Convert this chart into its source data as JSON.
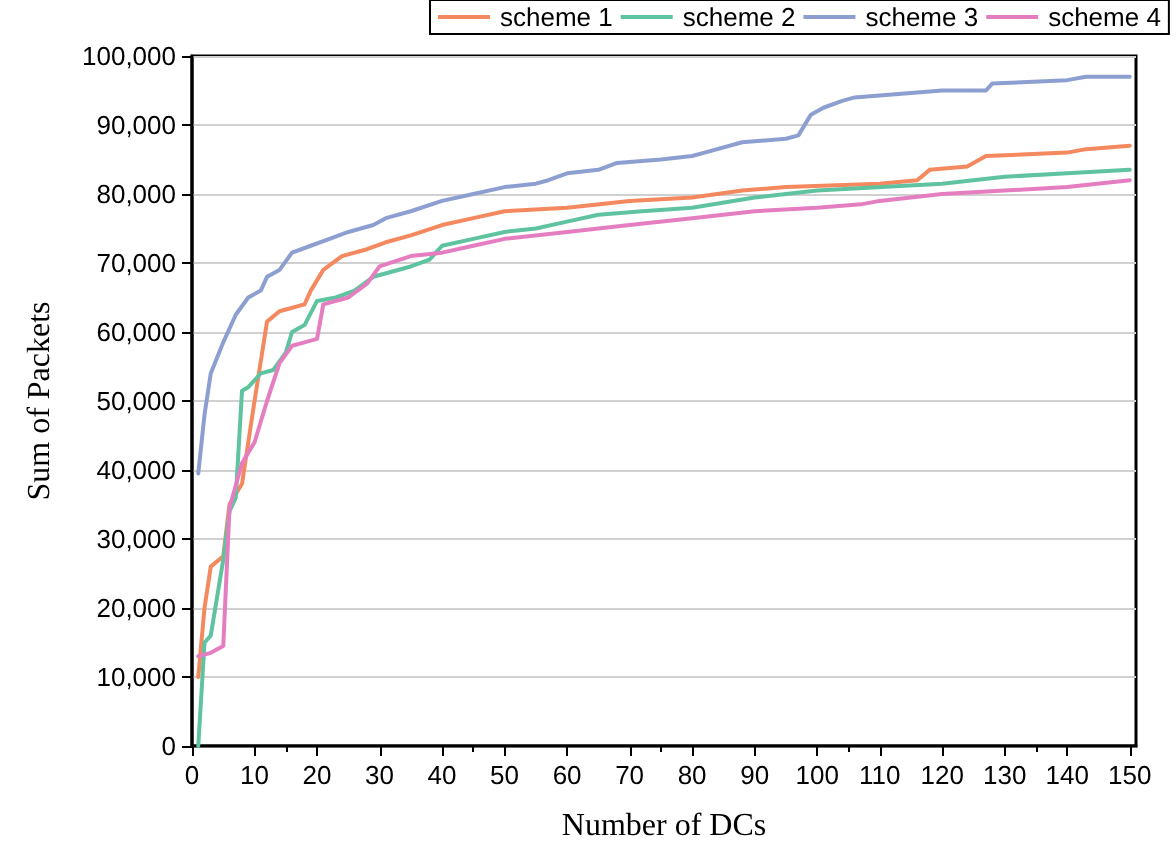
{
  "chart_data": {
    "type": "line",
    "xlabel": "Number of DCs",
    "ylabel": "Sum of Packets",
    "xlim": [
      0,
      151
    ],
    "xticks": [
      0,
      10,
      20,
      30,
      40,
      50,
      60,
      70,
      80,
      90,
      100,
      110,
      120,
      130,
      140,
      150
    ],
    "ylim": [
      0,
      100000
    ],
    "yticks": [
      0,
      {
        "value": 10000,
        "label": "10,000"
      },
      {
        "value": 20000,
        "label": "20,000"
      },
      {
        "value": 30000,
        "label": "30,000"
      },
      {
        "value": 40000,
        "label": "40,000"
      },
      {
        "value": 50000,
        "label": "50,000"
      },
      {
        "value": 60000,
        "label": "60,000"
      },
      {
        "value": 70000,
        "label": "70,000"
      },
      {
        "value": 80000,
        "label": "80,000"
      },
      {
        "value": 90000,
        "label": "90,000"
      },
      {
        "value": 100000,
        "label": "100,000"
      }
    ],
    "grid": "y",
    "legend": "top",
    "marker": "none",
    "line_style": "solid",
    "series": [
      {
        "name": "scheme 1",
        "color": "#f4895f",
        "x": [
          1,
          2,
          3,
          5,
          6,
          8,
          10,
          12,
          14,
          18,
          19,
          21,
          24,
          28,
          31,
          35,
          40,
          45,
          50,
          60,
          70,
          80,
          88,
          95,
          110,
          116,
          118,
          124,
          127,
          140,
          143,
          150
        ],
        "values": [
          10000,
          20000,
          26000,
          27500,
          35000,
          38000,
          50000,
          61500,
          63000,
          64000,
          66000,
          69000,
          71000,
          72000,
          73000,
          74000,
          75500,
          76500,
          77500,
          78000,
          79000,
          79500,
          80500,
          81000,
          81500,
          82000,
          83500,
          84000,
          85500,
          86000,
          86500,
          87000
        ]
      },
      {
        "name": "scheme 2",
        "color": "#5fc3a0",
        "x": [
          1,
          2,
          3,
          5,
          6,
          7,
          8,
          9,
          11,
          13,
          15,
          16,
          18,
          20,
          23,
          26,
          29,
          35,
          38,
          40,
          45,
          50,
          55,
          60,
          65,
          72,
          80,
          90,
          95,
          100,
          120,
          130,
          140,
          150
        ],
        "values": [
          0,
          15000,
          16000,
          27000,
          34000,
          36000,
          51500,
          52000,
          54000,
          54500,
          57000,
          60000,
          61000,
          64500,
          65000,
          66000,
          68000,
          69500,
          70500,
          72500,
          73500,
          74500,
          75000,
          76000,
          77000,
          77500,
          78000,
          79500,
          80000,
          80500,
          81500,
          82500,
          83000,
          83500
        ]
      },
      {
        "name": "scheme 3",
        "color": "#8c9fd0",
        "x": [
          1,
          2,
          3,
          5,
          7,
          9,
          11,
          12,
          14,
          16,
          19,
          22,
          25,
          29,
          31,
          35,
          40,
          45,
          50,
          55,
          57,
          60,
          65,
          68,
          75,
          80,
          82,
          88,
          95,
          97,
          99,
          101,
          104,
          106,
          120,
          127,
          128,
          140,
          143,
          150
        ],
        "values": [
          39500,
          48000,
          54000,
          58500,
          62500,
          65000,
          66000,
          68000,
          69000,
          71500,
          72500,
          73500,
          74500,
          75500,
          76500,
          77500,
          79000,
          80000,
          81000,
          81500,
          82000,
          83000,
          83500,
          84500,
          85000,
          85500,
          86000,
          87500,
          88000,
          88500,
          91500,
          92500,
          93500,
          94000,
          95000,
          95000,
          96000,
          96500,
          97000,
          97000
        ]
      },
      {
        "name": "scheme 4",
        "color": "#e57ec0",
        "x": [
          1,
          3,
          5,
          6,
          8,
          10,
          12,
          14,
          16,
          18,
          20,
          21,
          25,
          28,
          30,
          35,
          40,
          45,
          50,
          60,
          70,
          80,
          90,
          100,
          107,
          110,
          120,
          130,
          140,
          150
        ],
        "values": [
          13000,
          13500,
          14500,
          34500,
          41000,
          44000,
          50000,
          55500,
          58000,
          58500,
          59000,
          64000,
          65000,
          67000,
          69500,
          71000,
          71500,
          72500,
          73500,
          74500,
          75500,
          76500,
          77500,
          78000,
          78500,
          79000,
          80000,
          80500,
          81000,
          82000
        ]
      }
    ]
  }
}
